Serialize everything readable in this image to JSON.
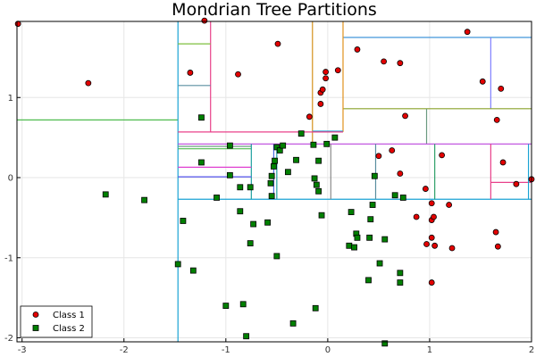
{
  "chart_data": {
    "type": "scatter",
    "title": "Mondrian Tree Partitions",
    "xlabel": "",
    "ylabel": "",
    "xlim": [
      -3.05,
      2.0
    ],
    "ylim": [
      -2.05,
      1.95
    ],
    "xticks": [
      -3,
      -2,
      -1,
      0,
      1,
      2
    ],
    "xtick_labels": [
      "-3",
      "-2",
      "-1",
      "0",
      "1",
      "2"
    ],
    "yticks": [
      -2,
      -1,
      0,
      1
    ],
    "ytick_labels": [
      "-2",
      "-1",
      "0",
      "1"
    ],
    "grid": true,
    "legend_position": "bottom-left",
    "series": [
      {
        "name": "Class 1",
        "marker": "circle",
        "color": "#e30000",
        "points": [
          [
            -3.04,
            1.92
          ],
          [
            -2.35,
            1.18
          ],
          [
            -1.21,
            1.96
          ],
          [
            -1.35,
            1.31
          ],
          [
            -0.88,
            1.29
          ],
          [
            -0.49,
            1.67
          ],
          [
            -0.18,
            0.76
          ],
          [
            -0.07,
            1.06
          ],
          [
            -0.05,
            1.1
          ],
          [
            -0.02,
            1.24
          ],
          [
            -0.02,
            1.32
          ],
          [
            0.1,
            1.34
          ],
          [
            0.29,
            1.6
          ],
          [
            0.55,
            1.45
          ],
          [
            0.71,
            1.43
          ],
          [
            -0.07,
            0.92
          ],
          [
            0.76,
            0.77
          ],
          [
            1.37,
            1.82
          ],
          [
            1.52,
            1.2
          ],
          [
            1.7,
            1.11
          ],
          [
            1.66,
            0.72
          ],
          [
            0.5,
            0.27
          ],
          [
            0.63,
            0.34
          ],
          [
            0.71,
            0.05
          ],
          [
            0.96,
            -0.14
          ],
          [
            1.12,
            0.28
          ],
          [
            1.72,
            0.19
          ],
          [
            1.85,
            -0.08
          ],
          [
            2.0,
            -0.02
          ],
          [
            0.87,
            -0.49
          ],
          [
            1.02,
            -0.53
          ],
          [
            1.04,
            -0.49
          ],
          [
            1.02,
            -0.32
          ],
          [
            1.19,
            -0.34
          ],
          [
            0.97,
            -0.83
          ],
          [
            1.02,
            -0.75
          ],
          [
            1.05,
            -0.85
          ],
          [
            1.22,
            -0.88
          ],
          [
            1.65,
            -0.68
          ],
          [
            1.67,
            -0.86
          ],
          [
            1.02,
            -1.31
          ]
        ]
      },
      {
        "name": "Class 2",
        "marker": "square",
        "color": "#008000",
        "points": [
          [
            -2.18,
            -0.21
          ],
          [
            -1.8,
            -0.28
          ],
          [
            -1.42,
            -0.54
          ],
          [
            -1.47,
            -1.08
          ],
          [
            -1.32,
            -1.16
          ],
          [
            -1.24,
            0.75
          ],
          [
            -1.24,
            0.19
          ],
          [
            -1.09,
            -0.25
          ],
          [
            -0.96,
            0.4
          ],
          [
            -0.96,
            0.03
          ],
          [
            -0.86,
            -0.12
          ],
          [
            -0.76,
            -0.12
          ],
          [
            -0.86,
            -0.42
          ],
          [
            -0.73,
            -0.58
          ],
          [
            -0.76,
            -0.82
          ],
          [
            -0.59,
            -0.56
          ],
          [
            -0.5,
            -0.98
          ],
          [
            -0.83,
            -1.58
          ],
          [
            -1.0,
            -1.6
          ],
          [
            -0.8,
            -1.98
          ],
          [
            -0.55,
            0.02
          ],
          [
            -0.56,
            -0.07
          ],
          [
            -0.55,
            -0.23
          ],
          [
            -0.53,
            0.14
          ],
          [
            -0.52,
            0.21
          ],
          [
            -0.5,
            0.38
          ],
          [
            -0.47,
            0.34
          ],
          [
            -0.44,
            0.4
          ],
          [
            -0.39,
            0.07
          ],
          [
            -0.31,
            0.22
          ],
          [
            -0.26,
            0.55
          ],
          [
            -0.14,
            0.41
          ],
          [
            -0.13,
            -0.01
          ],
          [
            -0.11,
            -0.09
          ],
          [
            -0.09,
            0.21
          ],
          [
            -0.09,
            -0.17
          ],
          [
            -0.06,
            -0.47
          ],
          [
            -0.01,
            0.42
          ],
          [
            0.07,
            0.5
          ],
          [
            -0.12,
            -1.63
          ],
          [
            -0.34,
            -1.82
          ],
          [
            0.23,
            -0.43
          ],
          [
            0.21,
            -0.85
          ],
          [
            0.26,
            -0.87
          ],
          [
            0.28,
            -0.7
          ],
          [
            0.29,
            -0.75
          ],
          [
            0.42,
            -0.52
          ],
          [
            0.41,
            -0.75
          ],
          [
            0.44,
            -0.34
          ],
          [
            0.46,
            0.02
          ],
          [
            0.56,
            -0.77
          ],
          [
            0.51,
            -1.07
          ],
          [
            0.4,
            -1.28
          ],
          [
            0.56,
            -2.07
          ],
          [
            0.71,
            -1.19
          ],
          [
            0.71,
            -1.31
          ],
          [
            0.66,
            -0.22
          ],
          [
            0.74,
            -0.25
          ]
        ]
      }
    ],
    "partition_lines": [
      {
        "color": "#4fbb4f",
        "x": [
          -3.05,
          -1.47
        ],
        "y": [
          0.72,
          0.72
        ]
      },
      {
        "color": "#1aa3d4",
        "x": [
          -1.47,
          -1.47
        ],
        "y": [
          -2.05,
          1.95
        ]
      },
      {
        "color": "#1aa3d4",
        "x": [
          -1.47,
          2.0
        ],
        "y": [
          -0.27,
          -0.27
        ]
      },
      {
        "color": "#2e8bd6",
        "x": [
          0.15,
          2.0
        ],
        "y": [
          1.75,
          1.75
        ]
      },
      {
        "color": "#8080ff",
        "x": [
          1.6,
          1.6
        ],
        "y": [
          0.86,
          1.75
        ]
      },
      {
        "color": "#8aa02a",
        "x": [
          0.15,
          2.0
        ],
        "y": [
          0.86,
          0.86
        ]
      },
      {
        "color": "#6a9a80",
        "x": [
          0.97,
          0.97
        ],
        "y": [
          0.42,
          0.86
        ]
      },
      {
        "color": "#d4921c",
        "x": [
          -0.15,
          -0.15
        ],
        "y": [
          0.42,
          1.95
        ]
      },
      {
        "color": "#e0901c",
        "x": [
          0.15,
          0.15
        ],
        "y": [
          0.57,
          1.95
        ]
      },
      {
        "color": "#1aa3d4",
        "x": [
          -0.15,
          0.15
        ],
        "y": [
          0.58,
          0.58
        ]
      },
      {
        "color": "#e8408a",
        "x": [
          -1.47,
          0.15
        ],
        "y": [
          0.57,
          0.57
        ]
      },
      {
        "color": "#e8408a",
        "x": [
          -1.15,
          -1.15
        ],
        "y": [
          0.57,
          1.95
        ]
      },
      {
        "color": "#7fbf3f",
        "x": [
          -1.47,
          -1.15
        ],
        "y": [
          1.67,
          1.67
        ]
      },
      {
        "color": "#5a8fa0",
        "x": [
          -1.47,
          -1.15
        ],
        "y": [
          1.15,
          1.15
        ]
      },
      {
        "color": "#bb44dd",
        "x": [
          -1.47,
          2.0
        ],
        "y": [
          0.42,
          0.42
        ]
      },
      {
        "color": "#6a9a80",
        "x": [
          -1.47,
          -0.75
        ],
        "y": [
          0.39,
          0.39
        ]
      },
      {
        "color": "#4fbb4f",
        "x": [
          -1.47,
          -0.75
        ],
        "y": [
          0.36,
          0.36
        ]
      },
      {
        "color": "#20a0a0",
        "x": [
          -0.75,
          -0.75
        ],
        "y": [
          -0.27,
          0.42
        ]
      },
      {
        "color": "#e040d0",
        "x": [
          -1.47,
          -0.75
        ],
        "y": [
          0.13,
          0.13
        ]
      },
      {
        "color": "#5555ee",
        "x": [
          -1.47,
          -0.75
        ],
        "y": [
          0.01,
          0.01
        ]
      },
      {
        "color": "#4f6fdf",
        "x": [
          -0.53,
          -0.53
        ],
        "y": [
          -0.27,
          0.42
        ]
      },
      {
        "color": "#20a0a0",
        "x": [
          -0.5,
          -0.5
        ],
        "y": [
          -0.27,
          0.42
        ]
      },
      {
        "color": "#8a8a8a",
        "x": [
          0.03,
          0.03
        ],
        "y": [
          -0.27,
          0.42
        ]
      },
      {
        "color": "#5a8fa0",
        "x": [
          0.47,
          0.47
        ],
        "y": [
          -0.27,
          0.42
        ]
      },
      {
        "color": "#2ea06a",
        "x": [
          1.05,
          1.05
        ],
        "y": [
          -0.27,
          0.42
        ]
      },
      {
        "color": "#e8408a",
        "x": [
          1.6,
          1.6
        ],
        "y": [
          -0.27,
          0.42
        ]
      },
      {
        "color": "#e8408a",
        "x": [
          1.6,
          2.0
        ],
        "y": [
          -0.06,
          -0.06
        ]
      },
      {
        "color": "#1aa3d4",
        "x": [
          1.97,
          1.97
        ],
        "y": [
          -0.27,
          0.42
        ]
      }
    ]
  }
}
